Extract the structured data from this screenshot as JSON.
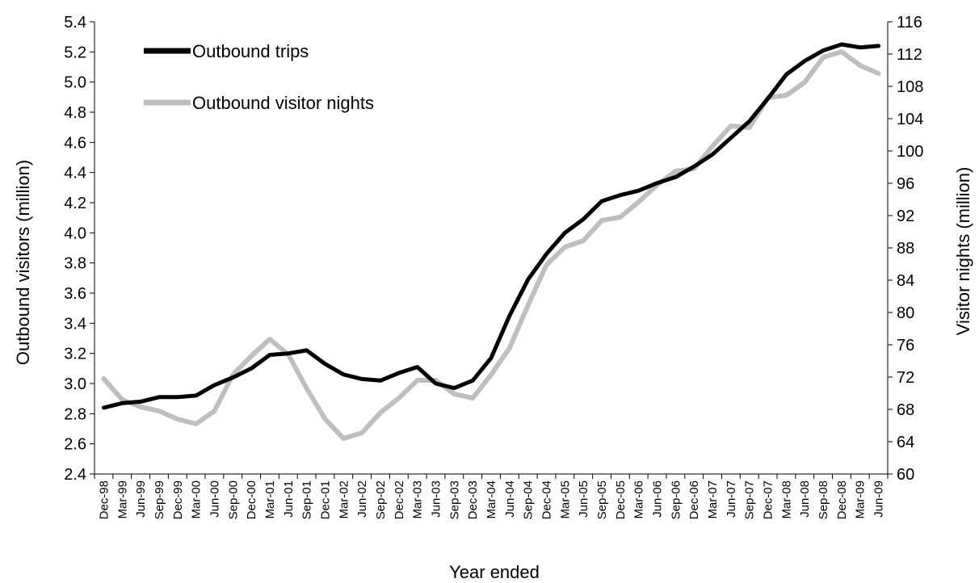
{
  "chart_data": {
    "type": "line",
    "xlabel": "Year ended",
    "ylabel_left": "Outbound visitors (million)",
    "ylabel_right": "Visitor nights (million)",
    "ylim_left": [
      2.4,
      5.4
    ],
    "yticks_left": [
      "2.4",
      "2.6",
      "2.8",
      "3.0",
      "3.2",
      "3.4",
      "3.6",
      "3.8",
      "4.0",
      "4.2",
      "4.4",
      "4.6",
      "4.8",
      "5.0",
      "5.2",
      "5.4"
    ],
    "ylim_right": [
      60,
      116
    ],
    "yticks_right": [
      "60",
      "64",
      "68",
      "72",
      "76",
      "80",
      "84",
      "88",
      "92",
      "96",
      "100",
      "104",
      "108",
      "112",
      "116"
    ],
    "grid": false,
    "legend_position": "top-left",
    "categories": [
      "Dec-98",
      "Mar-99",
      "Jun-99",
      "Sep-99",
      "Dec-99",
      "Mar-00",
      "Jun-00",
      "Sep-00",
      "Dec-00",
      "Mar-01",
      "Jun-01",
      "Sep-01",
      "Dec-01",
      "Mar-02",
      "Jun-02",
      "Sep-02",
      "Dec-02",
      "Mar-03",
      "Jun-03",
      "Sep-03",
      "Dec-03",
      "Mar-04",
      "Jun-04",
      "Sep-04",
      "Dec-04",
      "Mar-05",
      "Jun-05",
      "Sep-05",
      "Dec-05",
      "Mar-06",
      "Jun-06",
      "Sep-06",
      "Dec-06",
      "Mar-07",
      "Jun-07",
      "Sep-07",
      "Dec-07",
      "Mar-08",
      "Jun-08",
      "Sep-08",
      "Dec-08",
      "Mar-09",
      "Jun-09"
    ],
    "series": [
      {
        "name": "Outbound trips",
        "axis": "left",
        "color": "#000000",
        "values": [
          2.84,
          2.87,
          2.88,
          2.91,
          2.91,
          2.92,
          2.99,
          3.04,
          3.1,
          3.19,
          3.2,
          3.22,
          3.13,
          3.06,
          3.03,
          3.02,
          3.07,
          3.11,
          3.0,
          2.97,
          3.02,
          3.17,
          3.45,
          3.69,
          3.86,
          4.0,
          4.09,
          4.21,
          4.25,
          4.28,
          4.33,
          4.37,
          4.44,
          4.52,
          4.63,
          4.74,
          4.89,
          5.05,
          5.14,
          5.21,
          5.25,
          5.23,
          5.24
        ]
      },
      {
        "name": "Outbound visitor nights",
        "axis": "right",
        "color": "#bfbfbf",
        "values": [
          71.8,
          69.2,
          68.3,
          67.8,
          66.8,
          66.2,
          67.8,
          72.3,
          74.6,
          76.7,
          74.8,
          70.6,
          66.8,
          64.4,
          65.1,
          67.6,
          69.4,
          71.6,
          71.6,
          69.9,
          69.4,
          72.3,
          75.6,
          80.9,
          85.9,
          88.1,
          88.9,
          91.4,
          91.8,
          93.7,
          95.8,
          97.5,
          97.8,
          100.6,
          103.1,
          102.9,
          106.6,
          106.9,
          108.5,
          111.6,
          112.3,
          110.6,
          109.6
        ]
      }
    ]
  }
}
